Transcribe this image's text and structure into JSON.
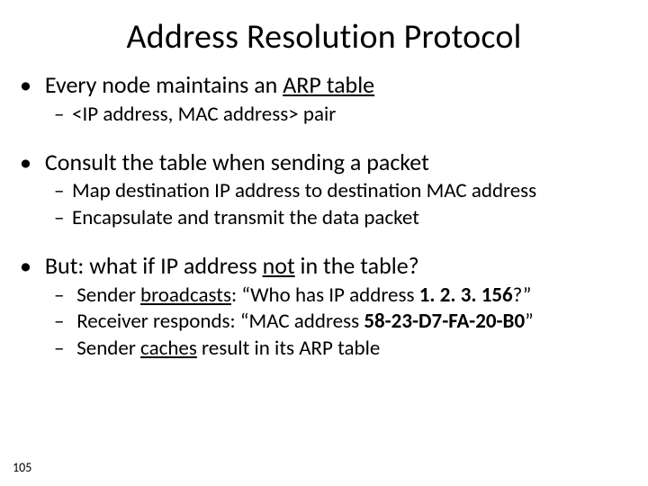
{
  "colors": {
    "background": "#ffffff",
    "text": "#000000"
  },
  "typography": {
    "title_fontsize": 38,
    "bullet1_fontsize": 26,
    "bullet2_fontsize": 23,
    "font_family": "Calibri, Arial, sans-serif"
  },
  "slide_number": "105",
  "title": "Address Resolution Protocol",
  "b1": {
    "pre": "Every node maintains an ",
    "u": "ARP table",
    "sub1": "<IP address, MAC address> pair"
  },
  "b2": {
    "text": "Consult the table when sending a packet",
    "sub1": "Map destination IP address to destination MAC address",
    "sub2": "Encapsulate and transmit the data packet"
  },
  "b3": {
    "pre": "But: what if IP address ",
    "u": "not",
    "post": " in the table?",
    "sub1": {
      "pre": "Sender ",
      "u1": "broadcasts",
      "mid": ": “Who has IP address ",
      "bold": "1. 2. 3. 156",
      "post": "?”"
    },
    "sub2": {
      "pre": "Receiver responds: “MAC address ",
      "bold": "58-23-D7-FA-20-B0",
      "post": "”"
    },
    "sub3": {
      "pre": "Sender ",
      "u": "caches",
      "post": " result in its ARP table"
    }
  }
}
